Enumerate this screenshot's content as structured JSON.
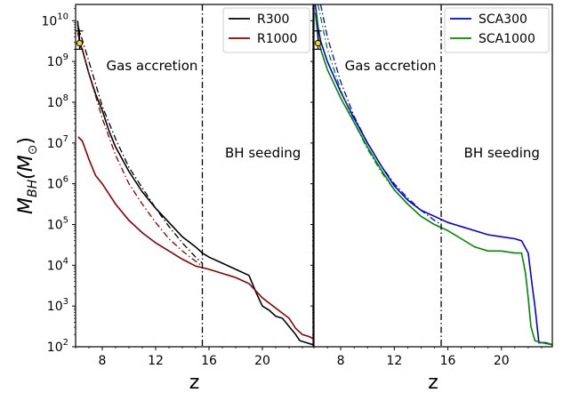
{
  "chart_data": [
    {
      "type": "line",
      "ylabel": "M_BH(M_⊙)",
      "xlabel": "z",
      "xlim": [
        6,
        23.8
      ],
      "ylim_log10": [
        2,
        10.4
      ],
      "y_scale": "log",
      "x_ticks": [
        8,
        12,
        16,
        20
      ],
      "y_tick_exponents": [
        2,
        3,
        4,
        5,
        6,
        7,
        8,
        9,
        10
      ],
      "legend_location": "top-right",
      "annotations": [
        "Gas accretion",
        "BH seeding"
      ],
      "vline_z": 15.5,
      "observed_point": {
        "z": 6.3,
        "log10_mbh": 9.45,
        "err_log10": [
          9.3,
          9.75
        ]
      },
      "series": [
        {
          "name": "R300",
          "color": "#000000",
          "style": "solid",
          "points": [
            [
              6.15,
              10.0
            ],
            [
              6.3,
              9.4
            ],
            [
              6.5,
              9.3
            ],
            [
              7,
              8.7
            ],
            [
              7.5,
              8.2
            ],
            [
              8,
              7.8
            ],
            [
              8.5,
              7.3
            ],
            [
              9,
              6.9
            ],
            [
              10,
              6.3
            ],
            [
              11,
              5.8
            ],
            [
              12,
              5.4
            ],
            [
              13,
              5.05
            ],
            [
              14,
              4.7
            ],
            [
              15,
              4.45
            ],
            [
              15.5,
              4.3
            ],
            [
              16,
              4.2
            ],
            [
              17,
              4.05
            ],
            [
              18,
              3.9
            ],
            [
              19,
              3.75
            ],
            [
              19.5,
              3.35
            ],
            [
              20,
              3.0
            ],
            [
              20.5,
              2.9
            ],
            [
              21,
              2.75
            ],
            [
              21.5,
              2.7
            ],
            [
              22,
              2.5
            ],
            [
              22.5,
              2.3
            ],
            [
              22.8,
              2.15
            ],
            [
              23.3,
              2.1
            ],
            [
              23.8,
              2.05
            ]
          ]
        },
        {
          "name": "R1000",
          "color": "#8b0000",
          "style": "solid",
          "points": [
            [
              6.2,
              7.15
            ],
            [
              6.5,
              7.05
            ],
            [
              7,
              6.6
            ],
            [
              7.5,
              6.2
            ],
            [
              8,
              6.0
            ],
            [
              9,
              5.5
            ],
            [
              10,
              5.1
            ],
            [
              11,
              4.8
            ],
            [
              12,
              4.55
            ],
            [
              13,
              4.35
            ],
            [
              14,
              4.15
            ],
            [
              15,
              3.98
            ],
            [
              16,
              3.9
            ],
            [
              17,
              3.8
            ],
            [
              18,
              3.7
            ],
            [
              19,
              3.55
            ],
            [
              20,
              3.2
            ],
            [
              21,
              2.95
            ],
            [
              22,
              2.7
            ],
            [
              22.5,
              2.45
            ],
            [
              23,
              2.3
            ],
            [
              23.5,
              2.25
            ],
            [
              23.8,
              2.2
            ]
          ]
        },
        {
          "name": "",
          "color": "#000000",
          "style": "dashdot",
          "points": [
            [
              6.15,
              9.9
            ],
            [
              7,
              9.0
            ],
            [
              8,
              7.9
            ],
            [
              9,
              7.1
            ],
            [
              10,
              6.4
            ],
            [
              11,
              5.9
            ],
            [
              12,
              5.4
            ],
            [
              13,
              4.95
            ],
            [
              14,
              4.55
            ],
            [
              15,
              4.2
            ],
            [
              15.5,
              4.05
            ]
          ]
        },
        {
          "name": "",
          "color": "#8b0000",
          "style": "dashdot",
          "points": [
            [
              6.15,
              9.7
            ],
            [
              7,
              8.7
            ],
            [
              8,
              7.6
            ],
            [
              9,
              6.7
            ],
            [
              10,
              6.0
            ],
            [
              11,
              5.5
            ],
            [
              12,
              5.05
            ],
            [
              13,
              4.65
            ],
            [
              14,
              4.35
            ],
            [
              15,
              4.1
            ],
            [
              15.5,
              3.98
            ]
          ]
        }
      ]
    },
    {
      "type": "line",
      "xlabel": "z",
      "xlim": [
        6,
        23.8
      ],
      "ylim_log10": [
        2,
        10.4
      ],
      "y_scale": "log",
      "x_ticks": [
        8,
        12,
        16,
        20
      ],
      "legend_location": "top-right",
      "annotations": [
        "Gas accretion",
        "BH seeding"
      ],
      "vline_z": 15.5,
      "observed_point": {
        "z": 6.3,
        "log10_mbh": 9.45,
        "err_log10": [
          9.3,
          9.75
        ]
      },
      "series": [
        {
          "name": "SCA300",
          "color": "#0000dd",
          "style": "solid",
          "points": [
            [
              6.1,
              10.4
            ],
            [
              6.3,
              9.85
            ],
            [
              6.5,
              9.5
            ],
            [
              7,
              9.0
            ],
            [
              8,
              8.25
            ],
            [
              9,
              7.6
            ],
            [
              10,
              7.0
            ],
            [
              11,
              6.45
            ],
            [
              12,
              5.95
            ],
            [
              13,
              5.6
            ],
            [
              14,
              5.35
            ],
            [
              15,
              5.2
            ],
            [
              16,
              5.05
            ],
            [
              17,
              4.95
            ],
            [
              18,
              4.85
            ],
            [
              19,
              4.75
            ],
            [
              20,
              4.7
            ],
            [
              21,
              4.65
            ],
            [
              21.5,
              4.6
            ],
            [
              22,
              4.3
            ],
            [
              22.3,
              3.5
            ],
            [
              22.5,
              3.0
            ],
            [
              22.8,
              2.1
            ],
            [
              23.3,
              2.1
            ],
            [
              23.8,
              2.05
            ]
          ]
        },
        {
          "name": "SCA1000",
          "color": "#008800",
          "style": "solid",
          "points": [
            [
              6.1,
              10.2
            ],
            [
              6.3,
              9.6
            ],
            [
              6.5,
              9.3
            ],
            [
              7,
              8.8
            ],
            [
              8,
              8.1
            ],
            [
              9,
              7.5
            ],
            [
              10,
              6.9
            ],
            [
              11,
              6.35
            ],
            [
              12,
              5.85
            ],
            [
              13,
              5.5
            ],
            [
              14,
              5.2
            ],
            [
              15,
              5.0
            ],
            [
              16,
              4.85
            ],
            [
              17,
              4.65
            ],
            [
              18,
              4.45
            ],
            [
              19,
              4.35
            ],
            [
              20,
              4.35
            ],
            [
              21,
              4.3
            ],
            [
              21.5,
              4.3
            ],
            [
              21.8,
              3.8
            ],
            [
              22,
              3.2
            ],
            [
              22.2,
              2.5
            ],
            [
              22.5,
              2.15
            ],
            [
              23,
              2.1
            ],
            [
              23.8,
              2.05
            ]
          ]
        },
        {
          "name": "",
          "color": "#0000dd",
          "style": "dashdot",
          "points": [
            [
              6.5,
              10.4
            ],
            [
              7,
              9.6
            ],
            [
              8,
              8.5
            ],
            [
              9,
              7.65
            ],
            [
              10,
              7.0
            ],
            [
              11,
              6.45
            ],
            [
              12,
              6.0
            ],
            [
              13,
              5.65
            ],
            [
              14,
              5.35
            ],
            [
              15,
              5.1
            ],
            [
              15.5,
              5.0
            ]
          ]
        },
        {
          "name": "",
          "color": "#008800",
          "style": "dashdot",
          "points": [
            [
              6.3,
              10.4
            ],
            [
              7,
              9.3
            ],
            [
              8,
              8.3
            ],
            [
              9,
              7.5
            ],
            [
              10,
              6.85
            ],
            [
              11,
              6.3
            ],
            [
              12,
              5.85
            ],
            [
              13,
              5.5
            ],
            [
              14,
              5.2
            ],
            [
              15,
              5.0
            ],
            [
              15.5,
              4.92
            ]
          ]
        }
      ]
    }
  ]
}
